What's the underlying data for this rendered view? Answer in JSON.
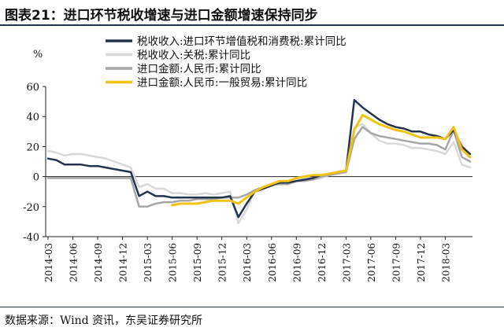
{
  "title": "图表21：进口环节税收增速与进口金额增速保持同步",
  "source": "数据来源：Wind 资讯，东吴证券研究所",
  "chart_data": {
    "type": "line",
    "ylabel": "%",
    "ylim": [
      -40,
      60
    ],
    "yticks": [
      -40,
      -20,
      0,
      20,
      40,
      60
    ],
    "x_start": "2014-03",
    "xticks": [
      "2014-03",
      "2014-06",
      "2014-09",
      "2014-12",
      "2015-03",
      "2015-06",
      "2015-09",
      "2015-12",
      "2016-03",
      "2016-06",
      "2016-09",
      "2016-12",
      "2017-03",
      "2017-06",
      "2017-09",
      "2017-12",
      "2018-03"
    ],
    "legend_position": "top",
    "series": [
      {
        "name": "税收收入:进口环节增值税和消费税:累计同比",
        "color": "#24344f",
        "values": [
          12,
          11,
          8,
          8,
          8,
          7,
          7,
          6,
          5,
          4,
          3,
          -13,
          -10,
          -13,
          -13,
          -14,
          -14,
          -14,
          -14,
          -14,
          -14,
          -14,
          -13,
          -27,
          -18,
          -10,
          -8,
          -6,
          -4,
          -4,
          -3,
          -2,
          -1,
          1,
          2,
          3,
          4,
          51,
          46,
          42,
          38,
          35,
          33,
          32,
          30,
          30,
          28,
          27,
          25,
          31,
          20,
          15
        ]
      },
      {
        "name": "税收收入:关税:累计同比",
        "color": "#d9d9d9",
        "values": [
          17,
          16,
          14,
          15,
          15,
          14,
          13,
          12,
          10,
          8,
          6,
          -7,
          -5,
          -8,
          -8,
          -11,
          -11,
          -12,
          -12,
          -11,
          -12,
          -11,
          -10,
          -31,
          -22,
          -9,
          -7,
          -5,
          -4,
          -4,
          -2,
          -2,
          -2,
          -1,
          1,
          2,
          3,
          33,
          35,
          29,
          24,
          22,
          22,
          21,
          19,
          19,
          18,
          17,
          15,
          23,
          8,
          6
        ]
      },
      {
        "name": "进口金额:人民币:累计同比",
        "color": "#a6a6a6",
        "values": [
          -1,
          -1,
          -1,
          -1,
          -1,
          -1,
          -1,
          -1,
          -1,
          -1,
          -1,
          -20,
          -20,
          -18,
          -17,
          -17,
          -16,
          -16,
          -15,
          -15,
          -15,
          -14,
          -14,
          -14,
          -12,
          -9,
          -7,
          -5,
          -5,
          -5,
          -3,
          -3,
          -2,
          0,
          1,
          2,
          3,
          25,
          33,
          29,
          27,
          26,
          25,
          24,
          23,
          22,
          22,
          21,
          18,
          31,
          13,
          10
        ]
      },
      {
        "name": "进口金额:人民币:一般贸易:累计同比",
        "color": "#f2c314",
        "values": [
          null,
          null,
          null,
          null,
          null,
          null,
          null,
          null,
          null,
          null,
          null,
          null,
          null,
          null,
          null,
          -19,
          -18,
          -18,
          -18,
          -17,
          -16,
          -16,
          -16,
          -18,
          -14,
          -10,
          -7,
          -5,
          -3,
          -3,
          -1,
          0,
          1,
          1,
          2,
          3,
          4,
          31,
          41,
          38,
          35,
          33,
          31,
          30,
          28,
          26,
          26,
          26,
          25,
          33,
          18,
          13
        ]
      }
    ]
  }
}
